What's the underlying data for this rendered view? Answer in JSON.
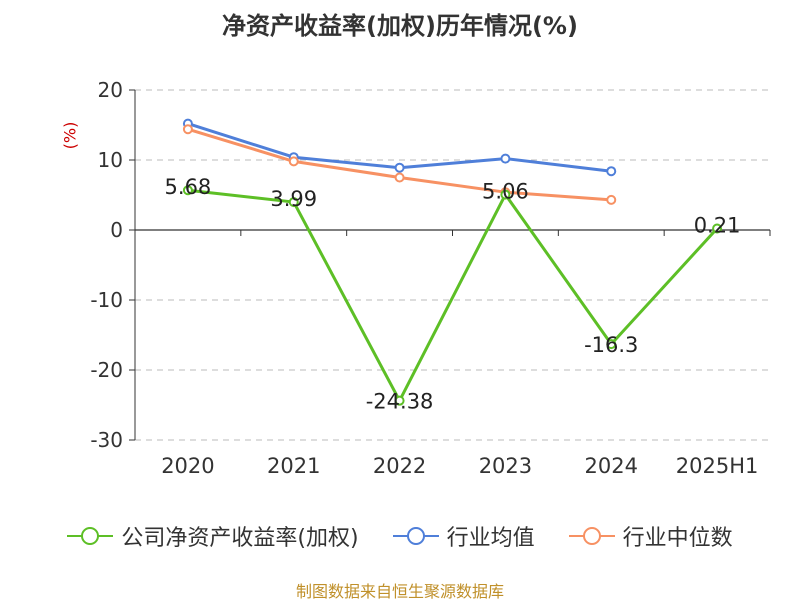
{
  "chart_data": {
    "type": "line",
    "title": "净资产收益率(加权)历年情况(%)",
    "ylabel": "(%)",
    "categories": [
      "2020",
      "2021",
      "2022",
      "2023",
      "2024",
      "2025H1"
    ],
    "ylim": [
      -30,
      20
    ],
    "yticks": [
      20,
      10,
      0,
      -10,
      -20,
      -30
    ],
    "grid": true,
    "legend_position": "bottom",
    "series": [
      {
        "name": "公司净资产收益率(加权)",
        "color": "#5dbf26",
        "values": [
          5.68,
          3.99,
          -24.38,
          5.06,
          -16.3,
          0.21
        ],
        "labels": [
          "5.68",
          "3.99",
          "-24.38",
          "5.06",
          "-16.3",
          "0.21"
        ]
      },
      {
        "name": "行业均值",
        "color": "#4f7fd9",
        "values": [
          15.2,
          10.4,
          8.9,
          10.2,
          8.4,
          null
        ]
      },
      {
        "name": "行业中位数",
        "color": "#f79163",
        "values": [
          14.4,
          9.8,
          7.5,
          5.4,
          4.3,
          null
        ]
      }
    ]
  },
  "footer": {
    "source": "制图数据来自恒生聚源数据库"
  }
}
